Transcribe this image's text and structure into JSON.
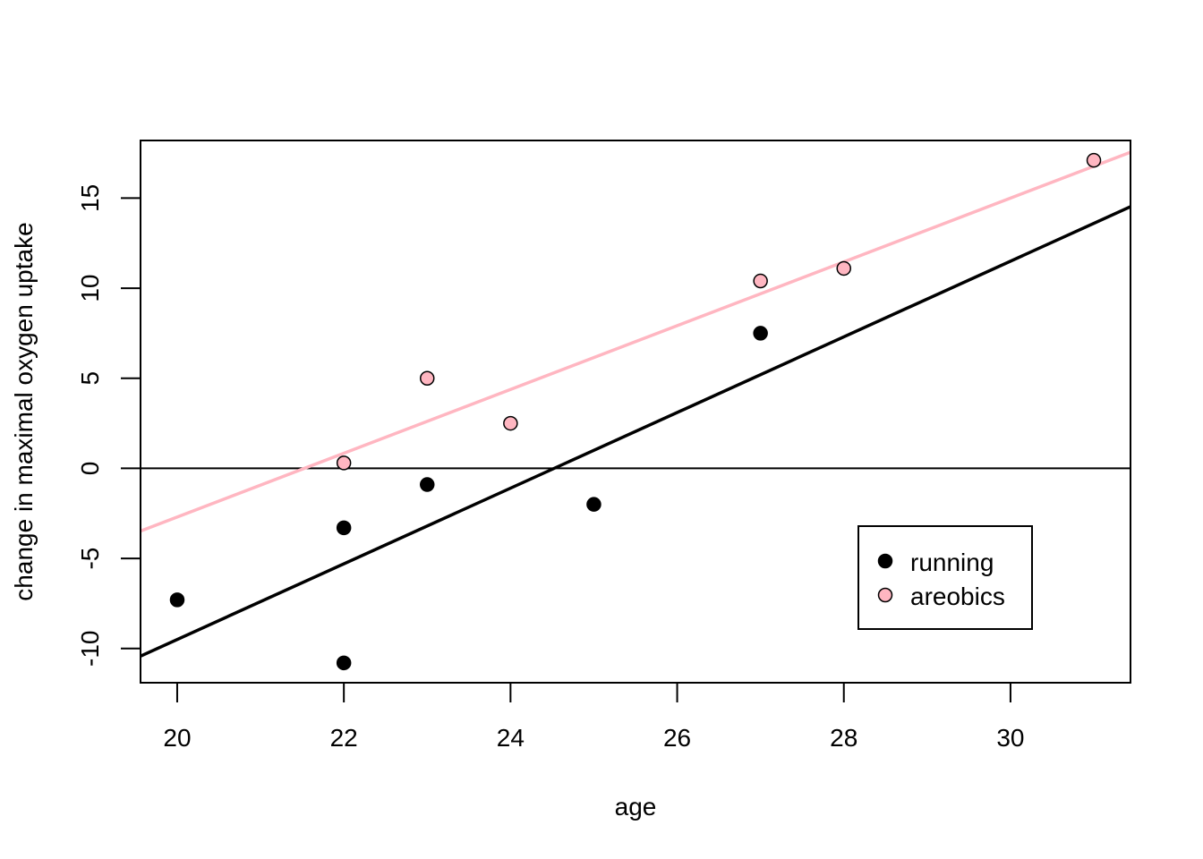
{
  "chart_data": {
    "type": "scatter",
    "title": "",
    "xlabel": "age",
    "ylabel": "change in maximal oxygen uptake",
    "xlim": [
      19.56,
      31.44
    ],
    "ylim": [
      -11.9,
      18.2
    ],
    "x_ticks": [
      20,
      22,
      24,
      26,
      28,
      30
    ],
    "y_ticks": [
      -10,
      -5,
      0,
      5,
      10,
      15
    ],
    "grid": false,
    "legend_position": "bottom-right",
    "series": [
      {
        "name": "running",
        "color": "#000000",
        "marker": "filled-circle",
        "points": [
          [
            20,
            -7.3
          ],
          [
            22,
            -3.3
          ],
          [
            22,
            -10.8
          ],
          [
            23,
            -0.9
          ],
          [
            25,
            -2.0
          ],
          [
            27,
            7.5
          ]
        ],
        "fit_line": {
          "slope": 2.1,
          "intercept": -51.5
        }
      },
      {
        "name": "areobics",
        "color": "#FFB6C1",
        "marker": "outlined-circle",
        "points": [
          [
            22,
            0.3
          ],
          [
            23,
            5.0
          ],
          [
            24,
            2.5
          ],
          [
            27,
            10.4
          ],
          [
            28,
            11.1
          ],
          [
            31,
            17.1
          ]
        ],
        "fit_line": {
          "slope": 1.77,
          "intercept": -38.1
        }
      }
    ],
    "reference_lines": [
      {
        "orientation": "horizontal",
        "y": 0,
        "color": "#000000"
      }
    ]
  }
}
